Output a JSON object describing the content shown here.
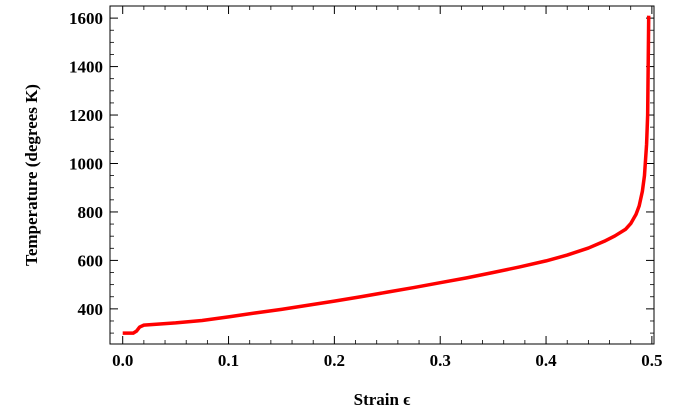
{
  "chart_data": {
    "type": "line",
    "title": "",
    "xlabel": "Strain ϵ",
    "ylabel": "Temperature  (degrees K)",
    "xlim": [
      -0.012,
      0.502
    ],
    "ylim": [
      255,
      1650
    ],
    "grid": false,
    "legend": "none",
    "x_ticks": [
      0.0,
      0.1,
      0.2,
      0.3,
      0.4,
      0.5
    ],
    "x_tick_labels": [
      "0.0",
      "0.1",
      "0.2",
      "0.3",
      "0.4",
      "0.5"
    ],
    "y_ticks": [
      400,
      600,
      800,
      1000,
      1200,
      1400,
      1600
    ],
    "y_tick_labels": [
      "400",
      "600",
      "800",
      "1000",
      "1200",
      "1400",
      "1600"
    ],
    "series": [
      {
        "color": "#ff0000",
        "x": [
          0.0,
          0.01,
          0.013,
          0.016,
          0.02,
          0.03,
          0.05,
          0.075,
          0.1,
          0.125,
          0.15,
          0.175,
          0.2,
          0.225,
          0.25,
          0.275,
          0.3,
          0.325,
          0.35,
          0.375,
          0.4,
          0.42,
          0.44,
          0.455,
          0.465,
          0.475,
          0.48,
          0.485,
          0.488,
          0.491,
          0.493,
          0.495,
          0.496,
          0.497
        ],
        "y": [
          300,
          300,
          308,
          325,
          333,
          336,
          342,
          352,
          367,
          383,
          398,
          415,
          432,
          450,
          469,
          488,
          508,
          528,
          550,
          573,
          598,
          622,
          651,
          679,
          701,
          728,
          752,
          790,
          825,
          885,
          950,
          1080,
          1200,
          1610
        ]
      }
    ]
  }
}
